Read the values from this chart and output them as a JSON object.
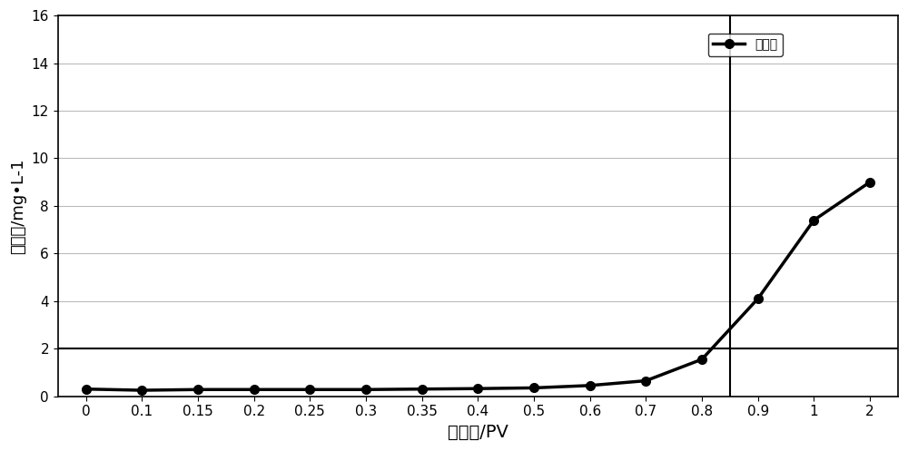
{
  "x_indices": [
    0,
    1,
    2,
    3,
    4,
    5,
    6,
    7,
    8,
    9,
    10,
    11,
    12,
    13,
    14
  ],
  "xticklabels": [
    "0",
    "0.1",
    "0.15",
    "0.2",
    "0.25",
    "0.3",
    "0.35",
    "0.4",
    "0.5",
    "0.6",
    "0.7",
    "0.8",
    "0.9",
    "1",
    "2"
  ],
  "y": [
    0.3,
    0.25,
    0.28,
    0.28,
    0.28,
    0.28,
    0.3,
    0.32,
    0.35,
    0.45,
    0.65,
    1.55,
    4.1,
    7.4,
    9.0
  ],
  "yticks": [
    0,
    2,
    4,
    6,
    8,
    10,
    12,
    14,
    16
  ],
  "ylim": [
    0,
    16
  ],
  "xlabel": "注入量/PV",
  "ylabel": "出砂量/mg•L-1",
  "legend_label": "出砂量",
  "hline_y": 2.0,
  "vline_x_index": 11.5,
  "line_color": "#000000",
  "marker": "o",
  "markersize": 7,
  "linewidth": 2.5,
  "background_color": "#ffffff",
  "grid_color": "#bbbbbb",
  "xlabel_fontsize": 14,
  "ylabel_fontsize": 13,
  "tick_fontsize": 11,
  "legend_fontsize": 13
}
